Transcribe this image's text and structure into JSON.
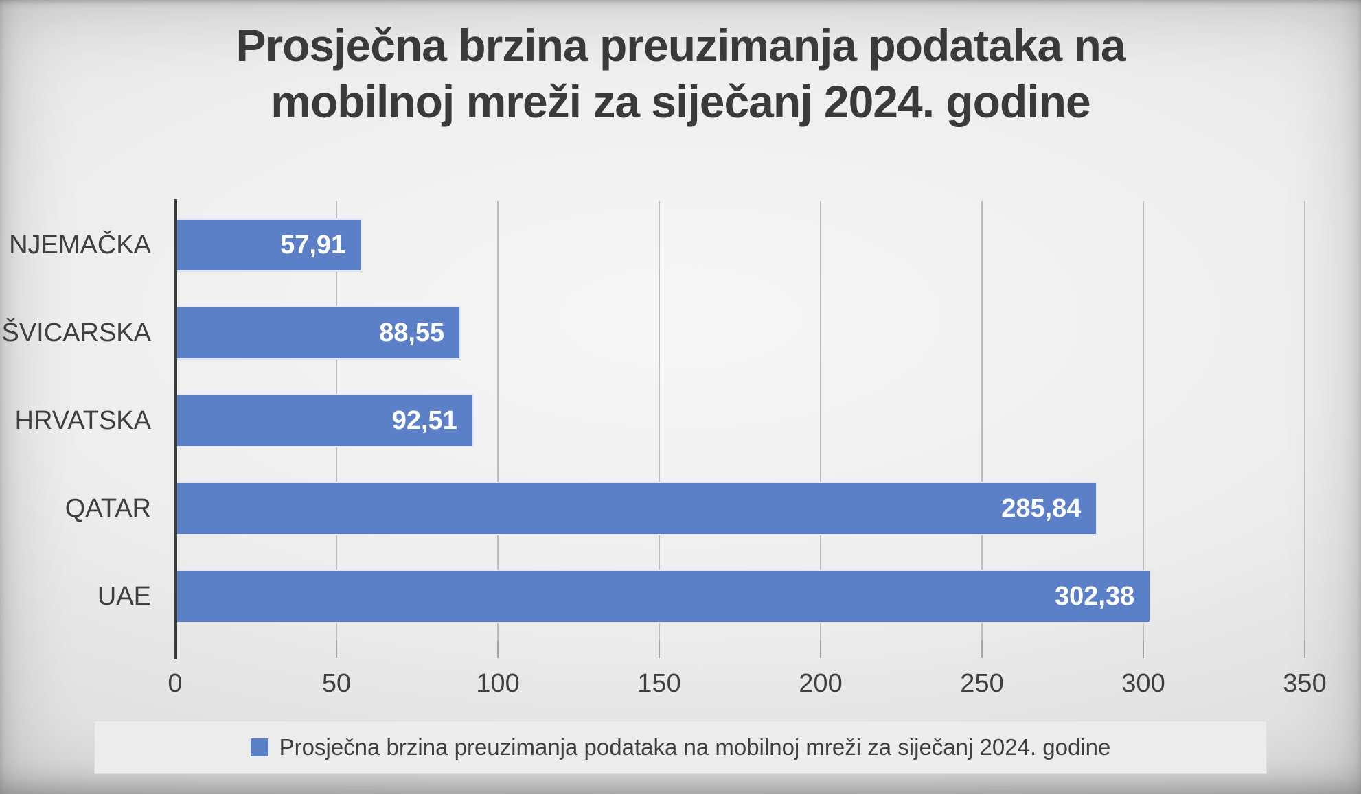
{
  "header": {
    "title_line1": "Prosječna brzina preuzimanja podataka na",
    "title_line2": "mobilnoj mreži za siječanj 2024. godine"
  },
  "chart_data": {
    "type": "bar",
    "orientation": "horizontal",
    "title": "Prosječna brzina preuzimanja podataka na mobilnoj mreži za siječanj 2024. godine",
    "categories": [
      "NJEMAČKA",
      "ŠVICARSKA",
      "HRVATSKA",
      "QATAR",
      "UAE"
    ],
    "values": [
      57.91,
      88.55,
      92.51,
      285.84,
      302.38
    ],
    "value_labels": [
      "57,91",
      "88,55",
      "92,51",
      "285,84",
      "302,38"
    ],
    "xlim": [
      0,
      350
    ],
    "x_ticks": [
      0,
      50,
      100,
      150,
      200,
      250,
      300,
      350
    ],
    "grid": true,
    "bar_color": "#5b80c7",
    "value_label_color": "#ffffff",
    "legend": {
      "position": "bottom",
      "swatch_color": "#5b80c7",
      "label": "Prosječna brzina preuzimanja podataka na mobilnoj mreži za siječanj 2024. godine"
    }
  }
}
